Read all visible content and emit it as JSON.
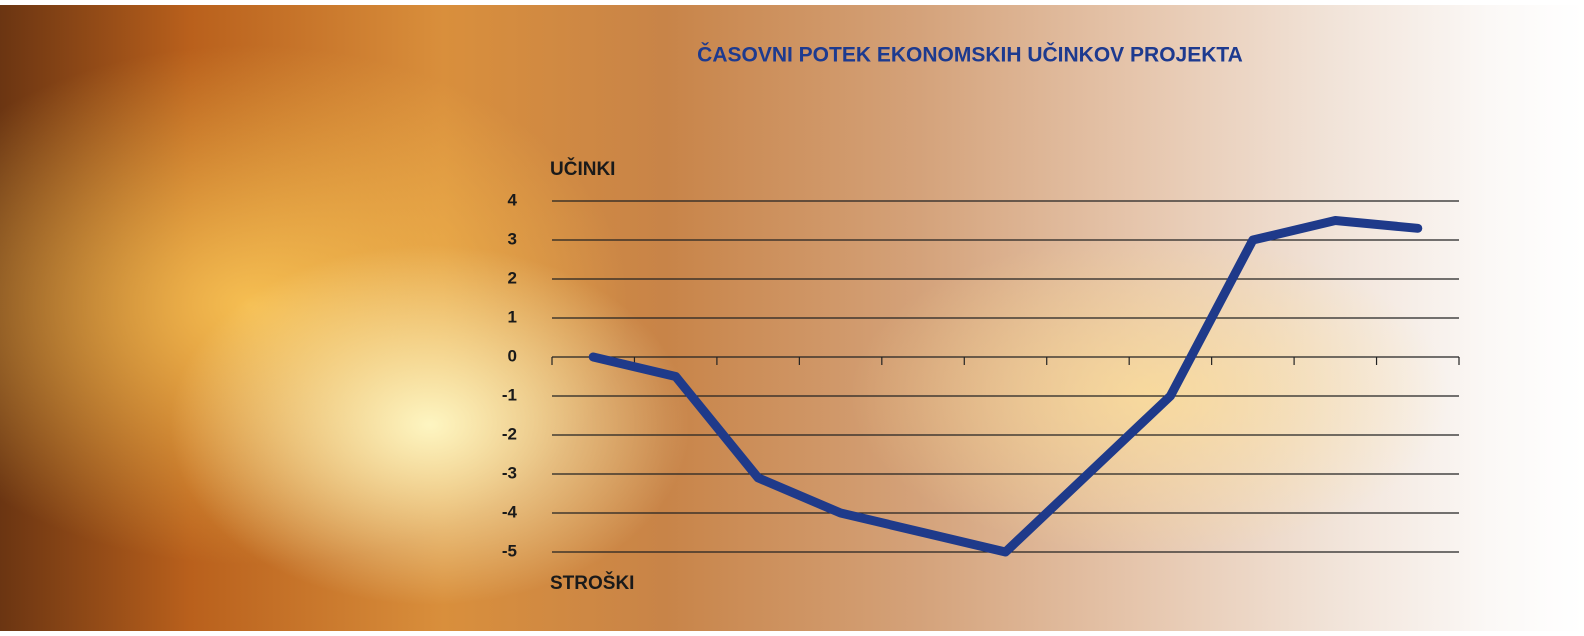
{
  "chart_data": {
    "type": "line",
    "title": "ČASOVNI POTEK EKONOMSKIH UČINKOV PROJEKTA",
    "y_label_top": "UČINKI",
    "y_label_bottom": "STROŠKI",
    "categories": [
      null,
      null,
      null,
      null,
      null,
      null,
      null,
      null,
      null,
      null,
      null
    ],
    "values": [
      0,
      -0.5,
      -3.1,
      -4,
      -4.5,
      -5,
      -3,
      -1,
      3,
      3.5,
      3.3
    ],
    "color": "#1f3a8a",
    "ylim": [
      -5,
      4
    ],
    "yticks": [
      -5,
      -4,
      -3,
      -2,
      -1,
      0,
      1,
      2,
      3,
      4
    ],
    "grid": true
  }
}
